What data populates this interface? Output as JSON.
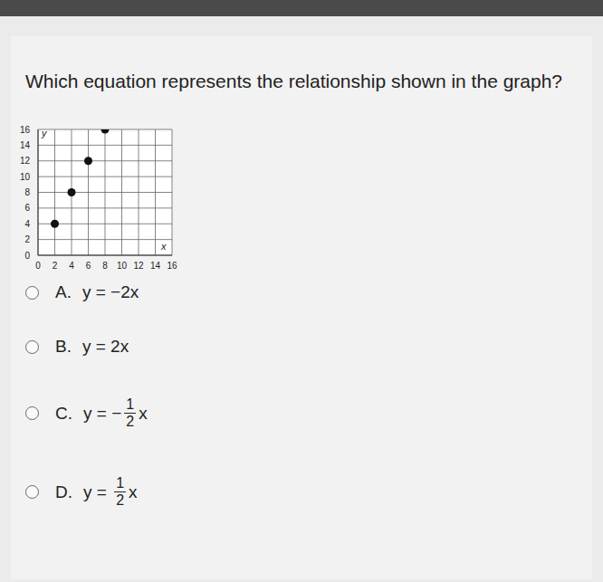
{
  "question": "Which equation represents the relationship shown in the graph?",
  "chart_data": {
    "type": "scatter",
    "x_label": "x",
    "y_label": "y",
    "x": [
      2,
      4,
      6,
      8
    ],
    "values": [
      4,
      8,
      12,
      16
    ],
    "color": "#111111",
    "marker": "circle",
    "xlim": [
      0,
      16
    ],
    "ylim": [
      0,
      16
    ],
    "xticks": [
      0,
      2,
      4,
      6,
      8,
      10,
      12,
      14,
      16
    ],
    "yticks": [
      0,
      2,
      4,
      6,
      8,
      10,
      12,
      14,
      16
    ],
    "grid": true
  },
  "options": [
    {
      "letter": "A.",
      "text": "y = −2x"
    },
    {
      "letter": "B.",
      "text": "y = 2x"
    },
    {
      "letter": "C.",
      "before": "y = −",
      "numerator": "1",
      "denominator": "2",
      "after": "x"
    },
    {
      "letter": "D.",
      "before": "y = ",
      "numerator": "1",
      "denominator": "2",
      "after": "x"
    }
  ]
}
